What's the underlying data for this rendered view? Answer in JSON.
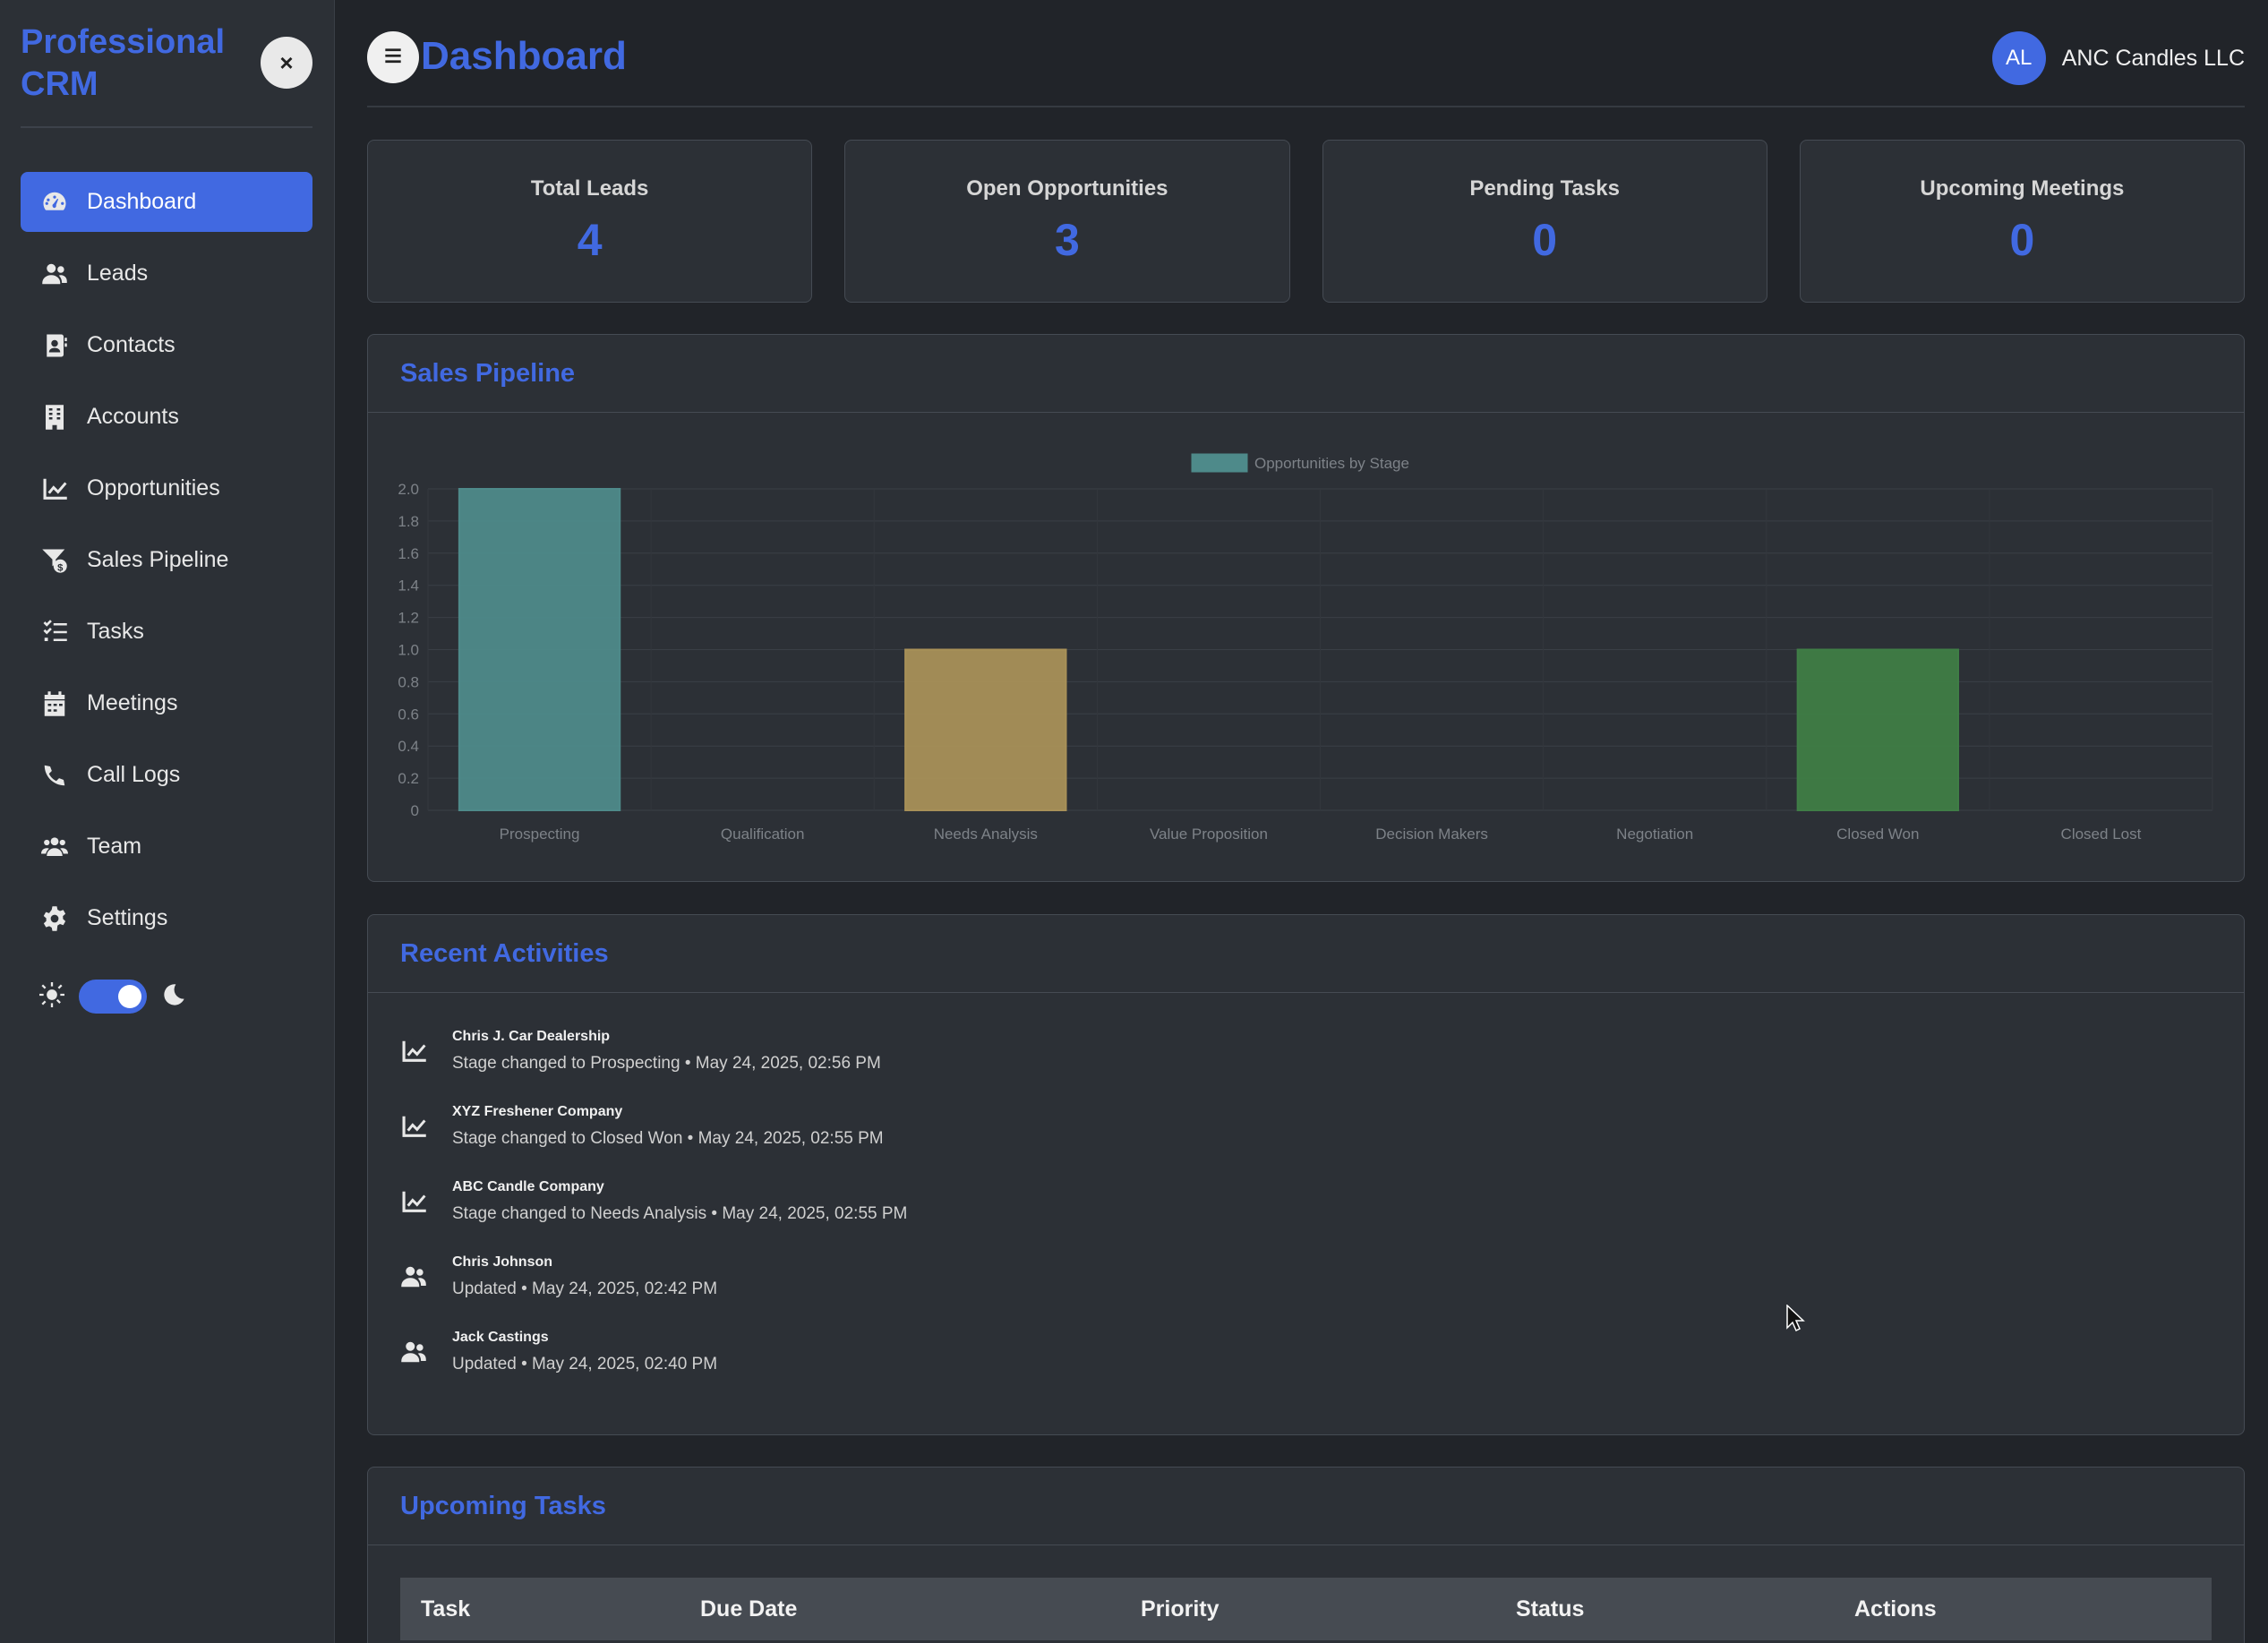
{
  "sidebar": {
    "brand": "Professional CRM",
    "close_label": "×",
    "items": [
      {
        "label": "Dashboard",
        "icon": "dashboard-icon",
        "active": true
      },
      {
        "label": "Leads",
        "icon": "users-icon"
      },
      {
        "label": "Contacts",
        "icon": "contact-card-icon"
      },
      {
        "label": "Accounts",
        "icon": "building-icon"
      },
      {
        "label": "Opportunities",
        "icon": "chart-line-icon"
      },
      {
        "label": "Sales Pipeline",
        "icon": "funnel-dollar-icon"
      },
      {
        "label": "Tasks",
        "icon": "tasks-icon"
      },
      {
        "label": "Meetings",
        "icon": "calendar-icon"
      },
      {
        "label": "Call Logs",
        "icon": "phone-icon"
      },
      {
        "label": "Team",
        "icon": "team-icon"
      },
      {
        "label": "Settings",
        "icon": "gear-icon"
      }
    ],
    "theme_toggle": {
      "dark_mode": true
    }
  },
  "header": {
    "title": "Dashboard",
    "avatar_initials": "AL",
    "company": "ANC Candles LLC"
  },
  "stats": [
    {
      "label": "Total Leads",
      "value": "4"
    },
    {
      "label": "Open Opportunities",
      "value": "3"
    },
    {
      "label": "Pending Tasks",
      "value": "0"
    },
    {
      "label": "Upcoming Meetings",
      "value": "0"
    }
  ],
  "pipeline": {
    "title": "Sales Pipeline"
  },
  "chart_data": {
    "type": "bar",
    "categories": [
      "Prospecting",
      "Qualification",
      "Needs Analysis",
      "Value Proposition",
      "Decision Makers",
      "Negotiation",
      "Closed Won",
      "Closed Lost"
    ],
    "series": [
      {
        "name": "Opportunities by Stage",
        "values": [
          2,
          0,
          1,
          0,
          0,
          0,
          1,
          0
        ]
      }
    ],
    "colors": [
      "#4e8a8a",
      "#4e8a8a",
      "#a89058",
      "#4e8a8a",
      "#4e8a8a",
      "#4e8a8a",
      "#3f7d46",
      "#4e8a8a"
    ],
    "legend_color": "#4e8a8a",
    "ylim": [
      0,
      2.0
    ],
    "yticks": [
      "0",
      "0.2",
      "0.4",
      "0.6",
      "0.8",
      "1.0",
      "1.2",
      "1.4",
      "1.6",
      "1.8",
      "2.0"
    ],
    "grid": true,
    "legend": "top-center"
  },
  "activities": {
    "title": "Recent Activities",
    "items": [
      {
        "icon": "chart-line-icon",
        "title": "Chris J. Car Dealership",
        "desc": "Stage changed to Prospecting • May 24, 2025, 02:56 PM"
      },
      {
        "icon": "chart-line-icon",
        "title": "XYZ Freshener Company",
        "desc": "Stage changed to Closed Won • May 24, 2025, 02:55 PM"
      },
      {
        "icon": "chart-line-icon",
        "title": "ABC Candle Company",
        "desc": "Stage changed to Needs Analysis • May 24, 2025, 02:55 PM"
      },
      {
        "icon": "users-icon",
        "title": "Chris Johnson",
        "desc": "Updated • May 24, 2025, 02:42 PM"
      },
      {
        "icon": "users-icon",
        "title": "Jack Castings",
        "desc": "Updated • May 24, 2025, 02:40 PM"
      }
    ]
  },
  "tasks": {
    "title": "Upcoming Tasks",
    "columns": [
      "Task",
      "Due Date",
      "Priority",
      "Status",
      "Actions"
    ]
  }
}
